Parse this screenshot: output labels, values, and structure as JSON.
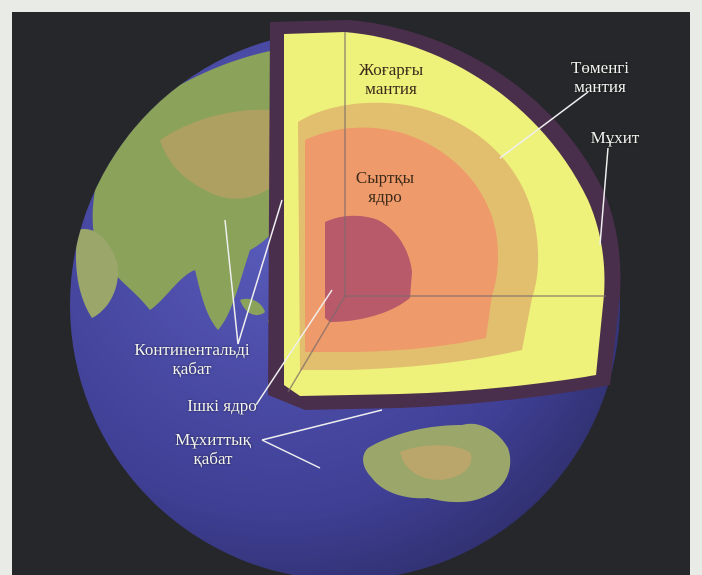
{
  "colors": {
    "background": "#26272a",
    "ocean": "#4a4aa8",
    "land": "#8aa25a",
    "crust": "#4a2f4d",
    "upper_mantle": "#eef17a",
    "lower_mantle": "#e2bf6e",
    "outer_core": "#ef9a6a",
    "inner_core": "#b85a6a"
  },
  "labels": {
    "upper_mantle": {
      "line1": "Жоғарғы",
      "line2": "мантия"
    },
    "lower_mantle": {
      "line1": "Төменгі",
      "line2": "мантия"
    },
    "ocean": {
      "line1": "Мұхит"
    },
    "outer_core": {
      "line1": "Сыртқы",
      "line2": "ядро"
    },
    "continental_crust": {
      "line1": "Континентальді",
      "line2": "қабат"
    },
    "inner_core": {
      "line1": "Ішкі ядро"
    },
    "oceanic_crust": {
      "line1": "Мұхиттық",
      "line2": "қабат"
    }
  }
}
